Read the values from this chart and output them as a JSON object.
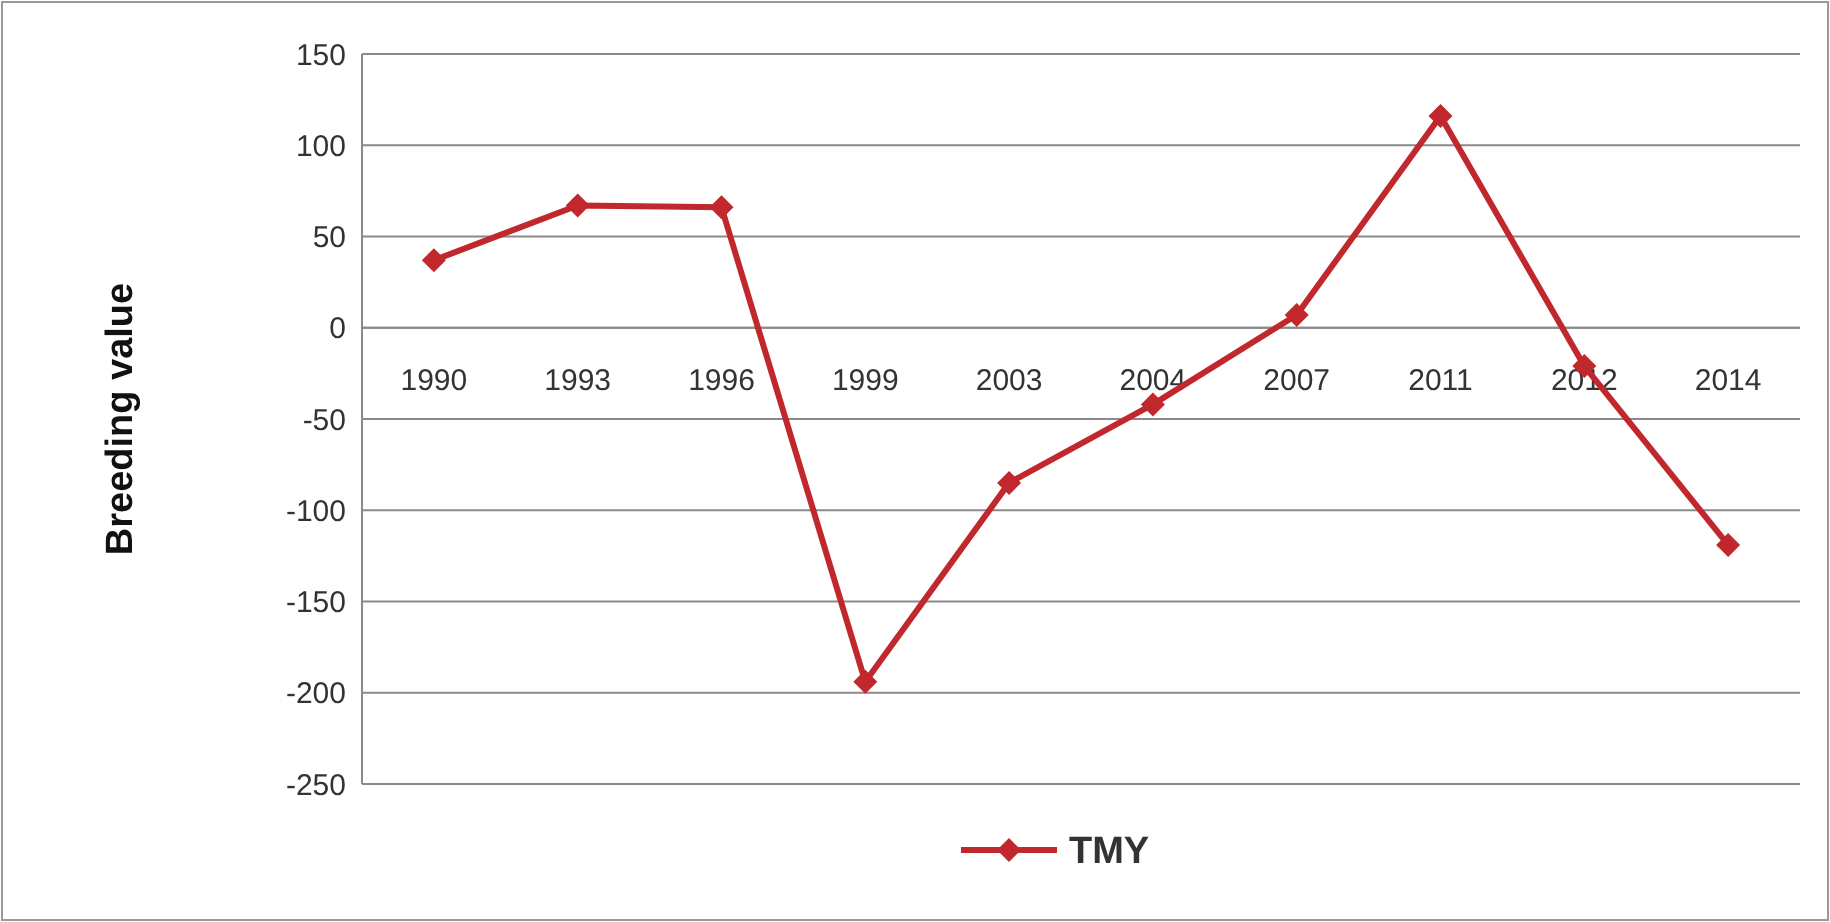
{
  "chart_data": {
    "type": "line",
    "ylabel": "Breeding value",
    "categories": [
      "1990",
      "1993",
      "1996",
      "1999",
      "2003",
      "2004",
      "2007",
      "2011",
      "2012",
      "2014"
    ],
    "series": [
      {
        "name": "TMY",
        "color": "#c0282d",
        "values": [
          37,
          67,
          66,
          -194,
          -85,
          -42,
          7,
          116,
          -21,
          -119
        ]
      }
    ],
    "ylim": [
      -250,
      150
    ],
    "yticks": [
      -250,
      -200,
      -150,
      -100,
      -50,
      0,
      50,
      100,
      150
    ],
    "grid": "y",
    "legend": "bottom",
    "marker": "diamond",
    "line_style": "solid"
  }
}
